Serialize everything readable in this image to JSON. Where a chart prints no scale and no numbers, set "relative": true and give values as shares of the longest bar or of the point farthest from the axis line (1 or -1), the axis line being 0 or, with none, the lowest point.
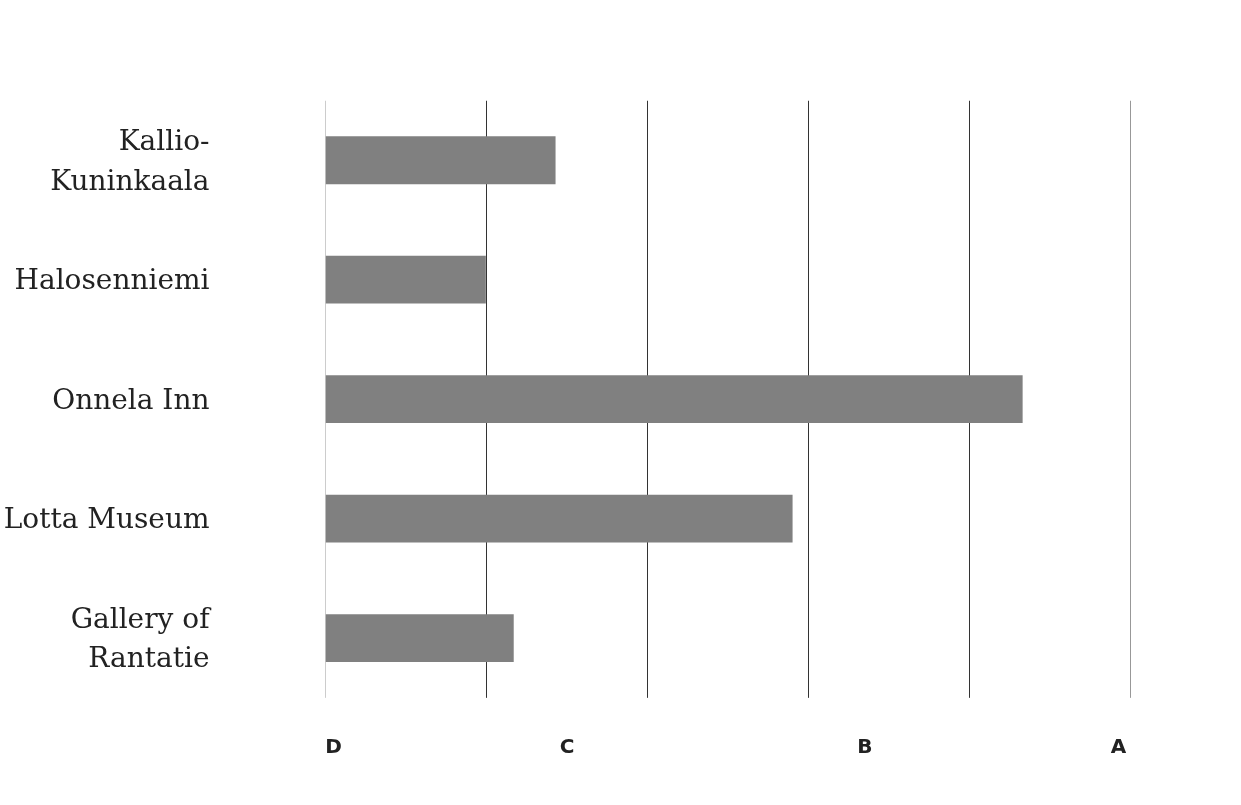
{
  "chart_data": {
    "type": "bar",
    "orientation": "horizontal",
    "relative": true,
    "categories": [
      "Kallio-Kuninkaala",
      "Halosenniemi",
      "Onnela Inn",
      "Lotta Museum",
      "Gallery of Rantatie"
    ],
    "values": [
      0.33,
      0.23,
      1,
      0.67,
      0.27
    ],
    "color": "#808080",
    "annotations": [
      "D",
      "C",
      "B",
      "A"
    ],
    "grid": "x"
  }
}
